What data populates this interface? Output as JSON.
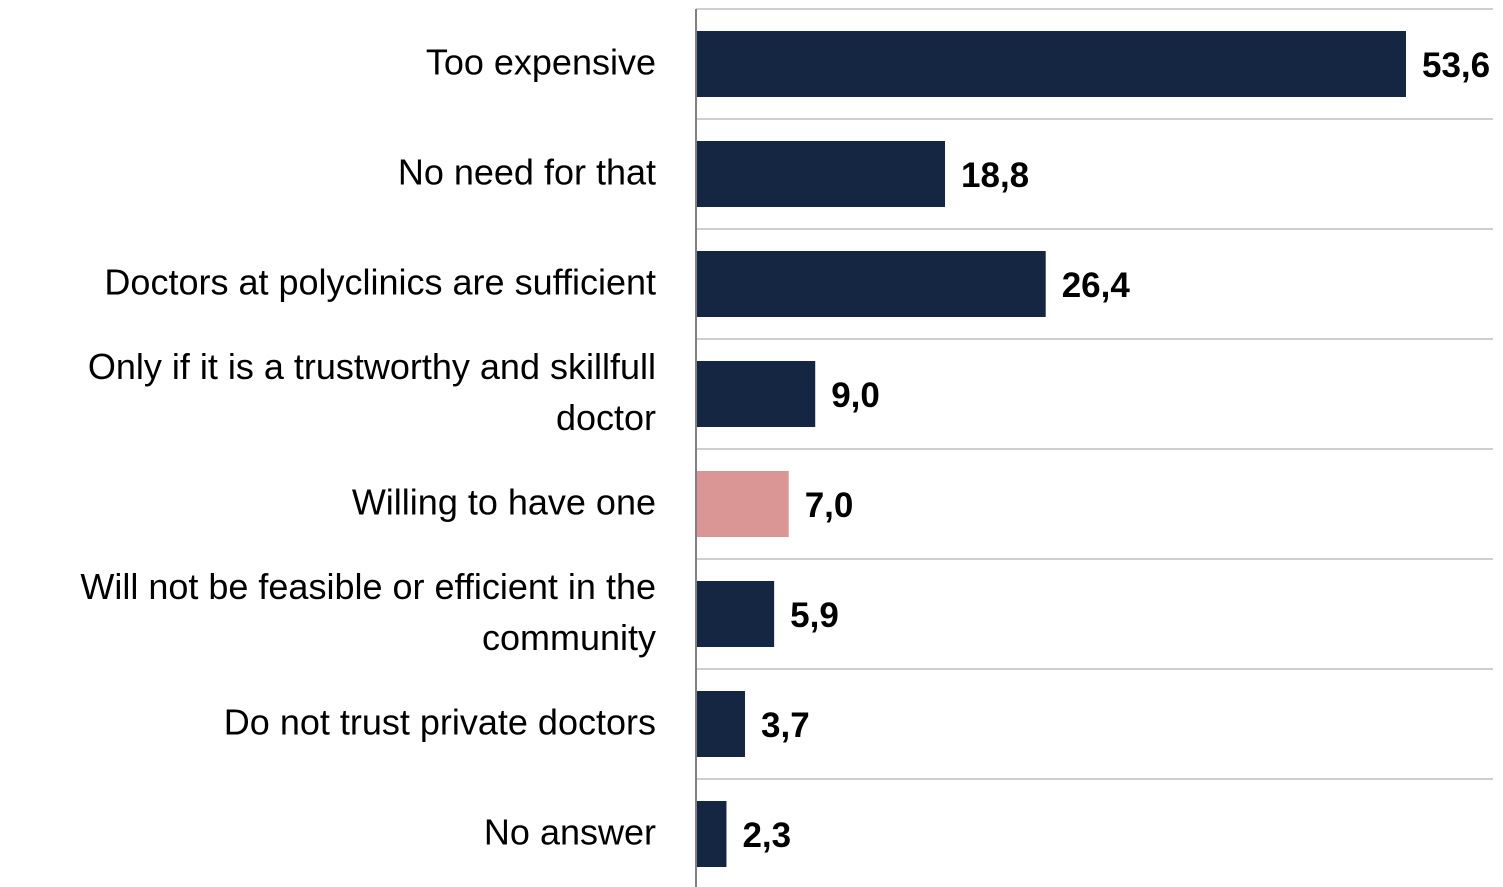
{
  "colors": {
    "bar": "#142641",
    "highlight": "#d99694",
    "gridline": "#bfbfbf",
    "axis": "#808080",
    "text": "#000000"
  },
  "chart_data": {
    "type": "bar",
    "orientation": "horizontal",
    "categories": [
      "Too expensive",
      "No need for that",
      "Doctors at polyclinics are sufficient",
      "Only if it is a trustworthy and skillfull doctor",
      "Willing to have one",
      "Will not be feasible or efficient in the community",
      "Do not trust private doctors",
      "No answer"
    ],
    "values": [
      53.6,
      18.8,
      26.4,
      9.0,
      7.0,
      5.9,
      3.7,
      2.3
    ],
    "value_labels": [
      "53,6",
      "18,8",
      "26,4",
      "9,0",
      "7,0",
      "5,9",
      "3,7",
      "2,3"
    ],
    "highlight_category": "Willing to have one",
    "title": "",
    "xlabel": "",
    "ylabel": "",
    "xlim": [
      0,
      60
    ],
    "grid": true,
    "legend": "none"
  }
}
